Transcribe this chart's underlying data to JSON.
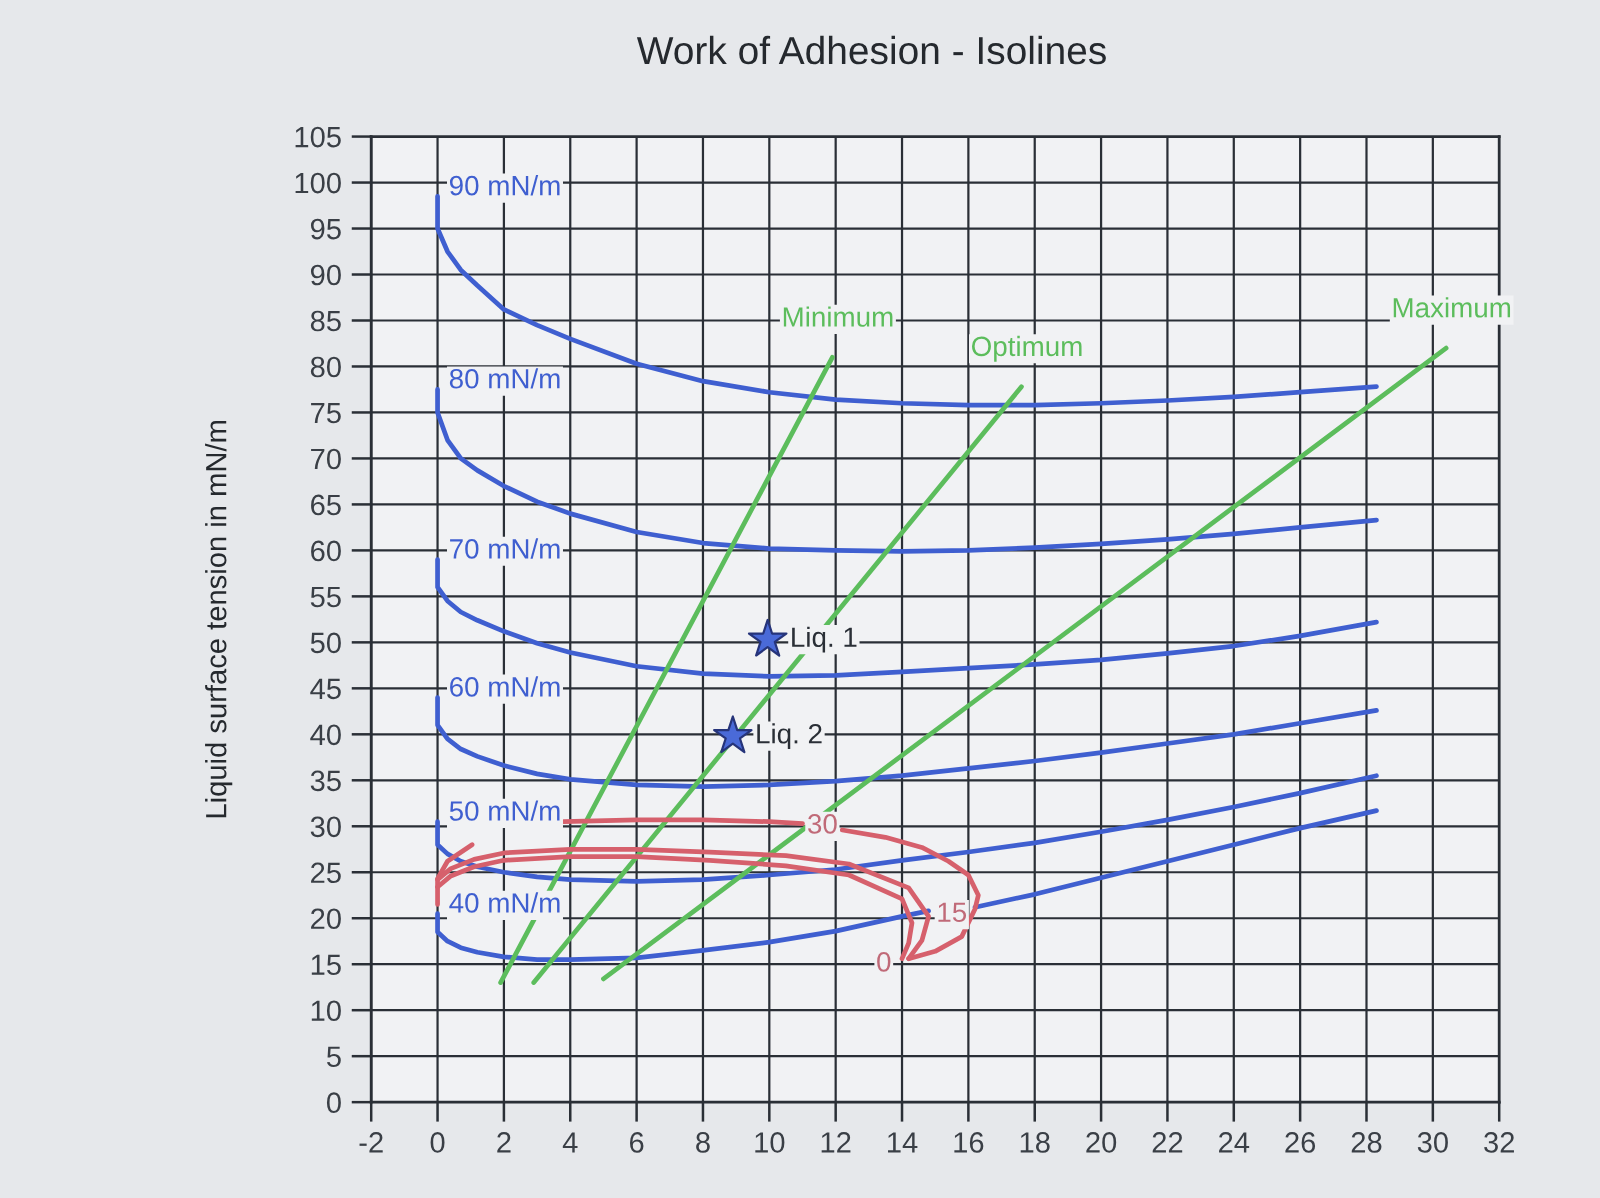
{
  "chart_data": {
    "type": "line",
    "title": "Work of Adhesion - Isolines",
    "ylabel": "Liquid surface tension in mN/m",
    "xlim": [
      -2,
      32
    ],
    "ylim": [
      0,
      105
    ],
    "xticks": [
      -2,
      0,
      2,
      4,
      6,
      8,
      10,
      12,
      14,
      16,
      18,
      20,
      22,
      24,
      26,
      28,
      30,
      32
    ],
    "yticks": [
      0,
      5,
      10,
      15,
      20,
      25,
      30,
      35,
      40,
      45,
      50,
      55,
      60,
      65,
      70,
      75,
      80,
      85,
      90,
      95,
      100,
      105
    ],
    "grid": true,
    "series": [
      {
        "name": "90 mN/m",
        "color": "#3f5fd0",
        "x": [
          0,
          0,
          0.3,
          0.7,
          1.2,
          2,
          3,
          4,
          6,
          8,
          10,
          12,
          14,
          16,
          18,
          20,
          22,
          24,
          26,
          28.3
        ],
        "values": [
          98.5,
          95,
          92.5,
          90.5,
          88.8,
          86.2,
          84.5,
          83,
          80.3,
          78.4,
          77.2,
          76.4,
          76,
          75.8,
          75.8,
          76,
          76.3,
          76.7,
          77.2,
          77.8
        ]
      },
      {
        "name": "80 mN/m",
        "color": "#3f5fd0",
        "x": [
          0,
          0,
          0.3,
          0.7,
          1.2,
          2,
          3,
          4,
          6,
          8,
          10,
          12,
          14,
          16,
          18,
          20,
          22,
          24,
          26,
          28.3
        ],
        "values": [
          77.5,
          75,
          72,
          70,
          68.7,
          67,
          65.3,
          64,
          62,
          60.8,
          60.2,
          60,
          59.9,
          60,
          60.3,
          60.7,
          61.2,
          61.8,
          62.5,
          63.3
        ]
      },
      {
        "name": "70 mN/m",
        "color": "#3f5fd0",
        "x": [
          0,
          0,
          0.3,
          0.7,
          1.2,
          2,
          3,
          4,
          6,
          8,
          10,
          12,
          14,
          16,
          18,
          20,
          22,
          24,
          26,
          28.3
        ],
        "values": [
          59,
          56,
          54.5,
          53.3,
          52.4,
          51.2,
          49.9,
          48.9,
          47.4,
          46.6,
          46.3,
          46.4,
          46.8,
          47.2,
          47.6,
          48.1,
          48.8,
          49.6,
          50.7,
          52.2
        ]
      },
      {
        "name": "60 mN/m",
        "color": "#3f5fd0",
        "x": [
          0,
          0,
          0.3,
          0.7,
          1.2,
          2,
          3,
          4,
          6,
          8,
          10,
          12,
          14,
          16,
          18,
          20,
          22,
          24,
          26,
          28.3
        ],
        "values": [
          44,
          41,
          39.5,
          38.4,
          37.6,
          36.6,
          35.7,
          35.1,
          34.5,
          34.3,
          34.5,
          34.9,
          35.5,
          36.3,
          37.1,
          38,
          39,
          40,
          41.2,
          42.6
        ]
      },
      {
        "name": "50 mN/m",
        "color": "#3f5fd0",
        "x": [
          0,
          0,
          0.3,
          0.7,
          1.2,
          2,
          3,
          4,
          6,
          8,
          10,
          12,
          14,
          16,
          18,
          20,
          22,
          24,
          26,
          28.3
        ],
        "values": [
          30.5,
          28,
          27,
          26.2,
          25.6,
          25,
          24.5,
          24.2,
          24,
          24.2,
          24.7,
          25.3,
          26.3,
          27.2,
          28.2,
          29.4,
          30.7,
          32.1,
          33.6,
          35.5
        ]
      },
      {
        "name": "40 mN/m",
        "color": "#3f5fd0",
        "x": [
          0,
          0,
          0.3,
          0.7,
          1.2,
          2,
          3,
          4,
          6,
          8,
          10,
          12,
          14,
          14.8,
          15.5,
          16.2,
          18,
          20,
          22,
          24,
          26,
          28.3
        ],
        "values": [
          20.5,
          18.5,
          17.5,
          16.8,
          16.3,
          15.8,
          15.5,
          15.5,
          15.7,
          16.5,
          17.4,
          18.6,
          20.2,
          20.8,
          null,
          21.2,
          22.6,
          24.4,
          26.2,
          28,
          29.8,
          31.7
        ]
      },
      {
        "name": "Minimum",
        "color": "#5cbd5c",
        "x": [
          11.9,
          1.9
        ],
        "values": [
          81,
          13
        ]
      },
      {
        "name": "Optimum",
        "color": "#5cbd5c",
        "x": [
          17.6,
          2.9
        ],
        "values": [
          77.8,
          13
        ]
      },
      {
        "name": "Maximum",
        "color": "#5cbd5c",
        "x": [
          30.4,
          5
        ],
        "values": [
          82,
          13.4
        ]
      },
      {
        "color": "#d6606c",
        "x": [
          0,
          0,
          0.3,
          1.04,
          2.3,
          3.8,
          6,
          8,
          10,
          11,
          11.6,
          12.2,
          13.5,
          14.6,
          15.4,
          16,
          16.3,
          16.2,
          15.8,
          15,
          14.2
        ],
        "values": [
          21.5,
          24.3,
          26.2,
          28,
          null,
          30.5,
          30.7,
          30.7,
          30.5,
          30.3,
          null,
          29.6,
          28.8,
          27.7,
          26.2,
          24.7,
          22.5,
          21,
          18,
          16.4,
          15.6
        ]
      },
      {
        "color": "#d6606c",
        "x": [
          0,
          0.4,
          1.1,
          2,
          4,
          6,
          8.2,
          10.5,
          12.4,
          14.2,
          14.8,
          14.6,
          14.2
        ],
        "values": [
          24.2,
          25.4,
          26.4,
          27.1,
          27.5,
          27.5,
          27.2,
          26.8,
          25.9,
          23.3,
          20.2,
          17.6,
          15.6
        ]
      },
      {
        "color": "#d6606c",
        "x": [
          0,
          0.4,
          1.1,
          2,
          4,
          6,
          8.2,
          10.5,
          12.4,
          14,
          14.3,
          14.2,
          14
        ],
        "values": [
          23.4,
          24.6,
          25.6,
          26.3,
          26.7,
          26.7,
          26.3,
          25.7,
          24.7,
          22.1,
          19.5,
          17.3,
          15.6
        ]
      },
      {
        "type": "scatter",
        "name": "Liq. 1",
        "color": "#4a6ad8",
        "marker": "star",
        "x": [
          9.95
        ],
        "values": [
          50.3
        ]
      },
      {
        "type": "scatter",
        "name": "Liq. 2",
        "color": "#4a6ad8",
        "marker": "star",
        "x": [
          8.9
        ],
        "values": [
          39.8
        ]
      }
    ],
    "annotations": [
      {
        "text": "30",
        "x": 11.6,
        "y": 30
      },
      {
        "text": "15",
        "x": 15.5,
        "y": 20.4
      },
      {
        "text": "0",
        "x": 13.45,
        "y": 15
      }
    ]
  }
}
